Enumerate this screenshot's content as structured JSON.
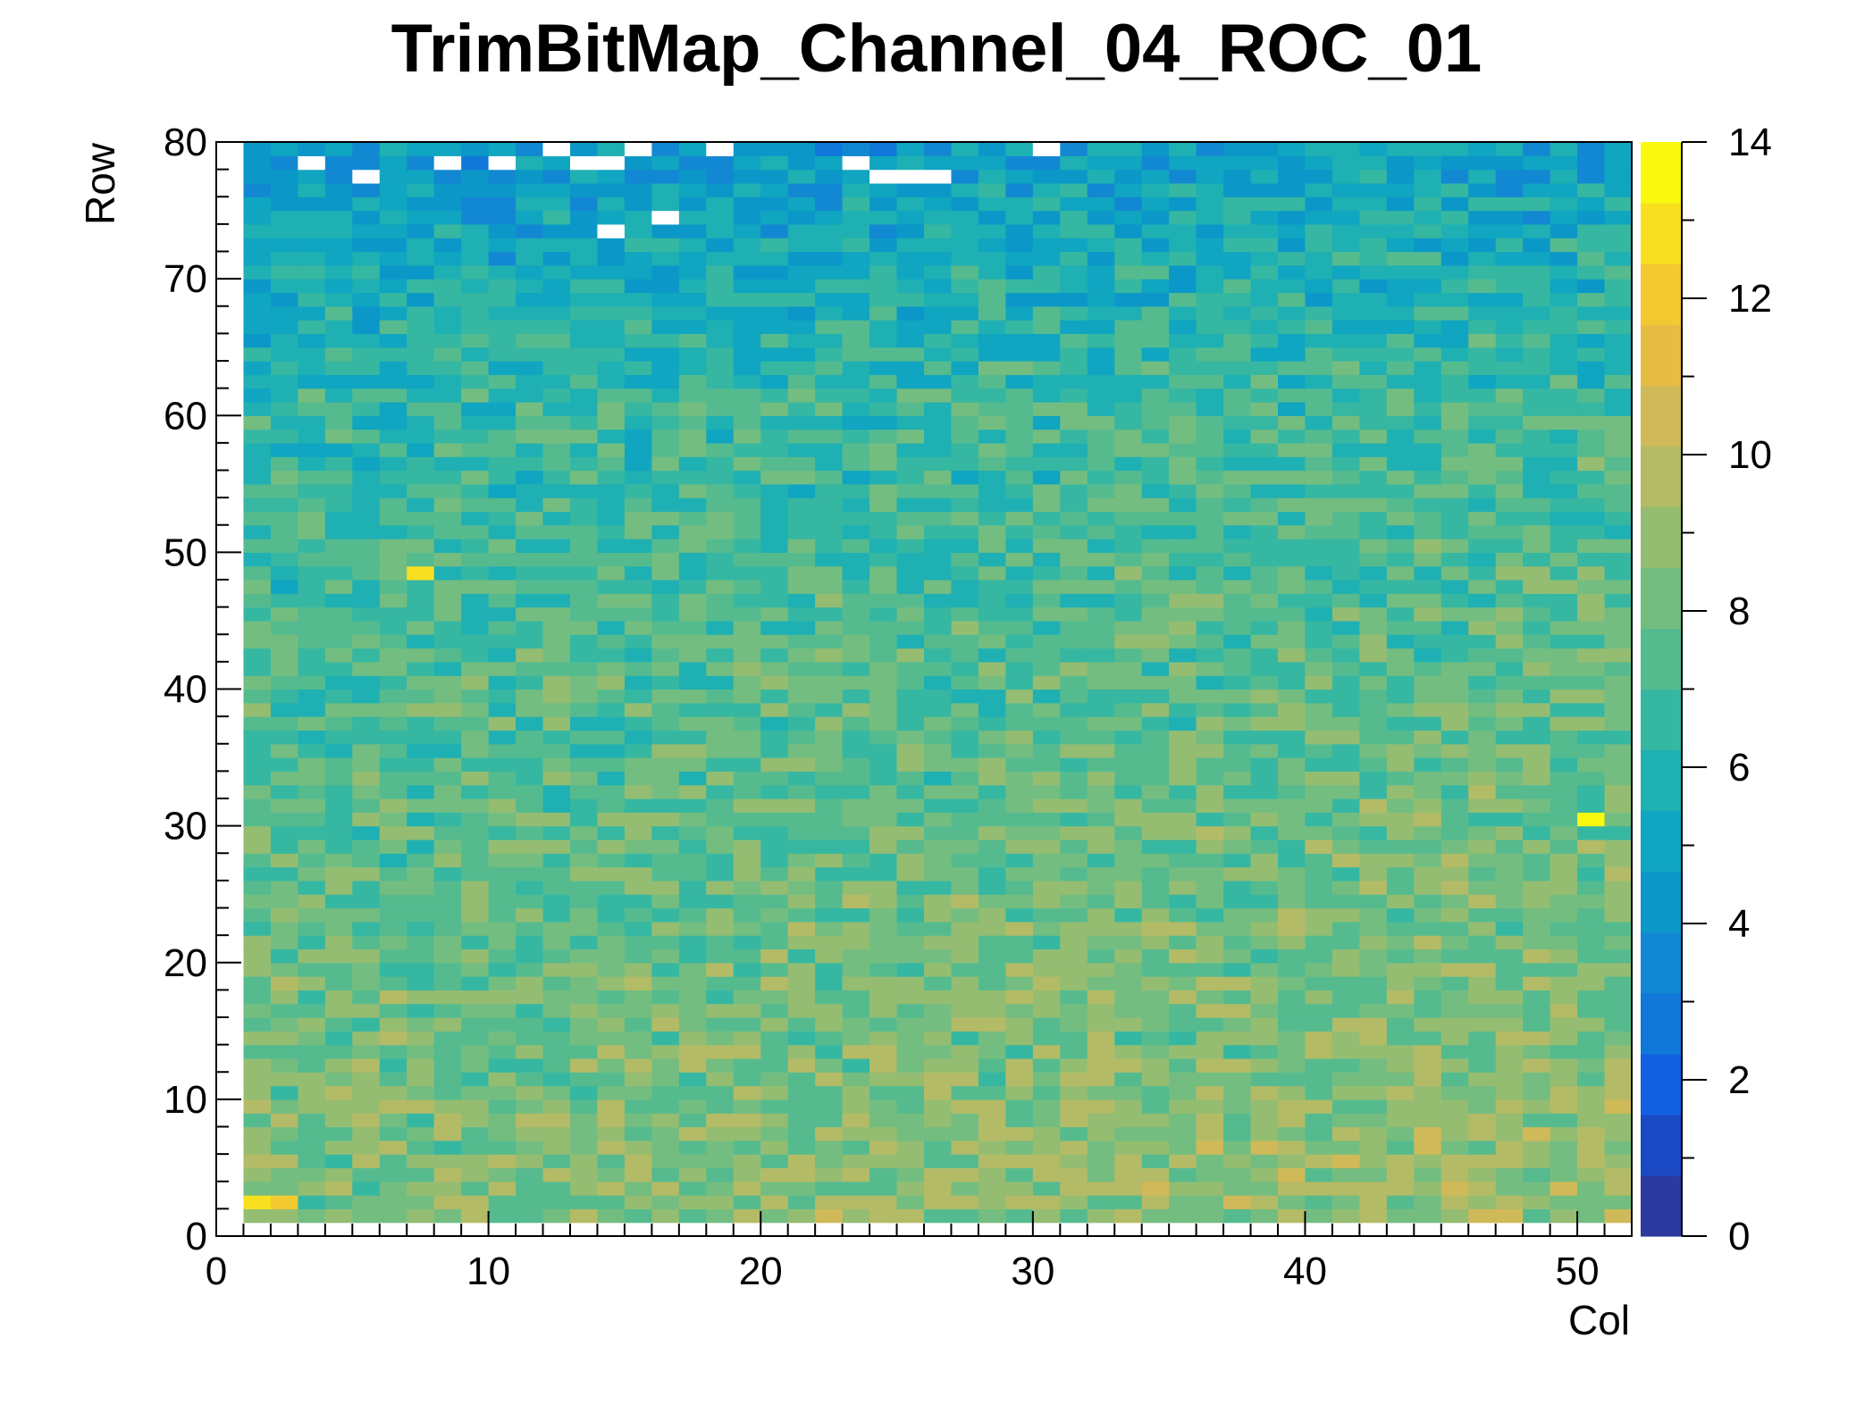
{
  "chart_data": {
    "type": "heatmap",
    "title": "TrimBitMap_Channel_04_ROC_01",
    "xlabel": "Col",
    "ylabel": "Row",
    "xlim": [
      0,
      52
    ],
    "ylim": [
      0,
      80
    ],
    "zlim": [
      0,
      14
    ],
    "x_ticks": [
      "0",
      "10",
      "20",
      "30",
      "40",
      "50"
    ],
    "y_ticks": [
      "0",
      "10",
      "20",
      "30",
      "40",
      "50",
      "60",
      "70",
      "80"
    ],
    "z_ticks": [
      "0",
      "2",
      "4",
      "6",
      "8",
      "10",
      "12",
      "14"
    ],
    "colors": {
      "palette": [
        "#2c3a9f",
        "#1b49c4",
        "#1260e0",
        "#1078d8",
        "#1388d2",
        "#0b98c8",
        "#10a5c0",
        "#1fb0b3",
        "#36b7a2",
        "#55bb8f",
        "#74bd80",
        "#94bd72",
        "#b4bb66",
        "#d0b958",
        "#e6bc45",
        "#f3c932",
        "#f8e020",
        "#f9f90f"
      ],
      "empty": "#ffffff"
    },
    "notes_visible": {
      "empty_cells": [
        [
          3,
          78
        ],
        [
          5,
          77
        ],
        [
          8,
          78
        ],
        [
          10,
          78
        ],
        [
          12,
          79
        ],
        [
          13,
          78
        ],
        [
          14,
          78
        ],
        [
          14,
          73
        ],
        [
          15,
          79
        ],
        [
          16,
          74
        ],
        [
          18,
          79
        ],
        [
          23,
          78
        ],
        [
          24,
          77
        ],
        [
          25,
          77
        ],
        [
          26,
          77
        ],
        [
          30,
          79
        ]
      ],
      "hot_cells": [
        [
          1,
          2,
          13
        ],
        [
          2,
          2,
          12
        ],
        [
          7,
          48,
          13
        ],
        [
          50,
          30,
          14
        ]
      ]
    }
  }
}
